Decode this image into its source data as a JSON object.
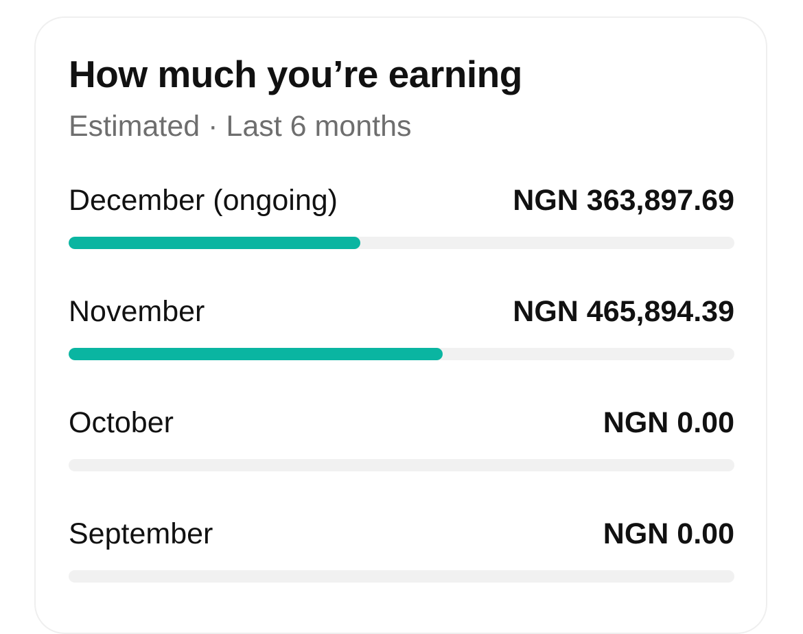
{
  "card": {
    "title": "How much you’re earning",
    "subtitle": "Estimated · Last 6 months"
  },
  "accent_color": "#0ab5a1",
  "months": [
    {
      "label": "December (ongoing)",
      "amount": "NGN 363,897.69",
      "progress": 0.438
    },
    {
      "label": "November",
      "amount": "NGN 465,894.39",
      "progress": 0.562
    },
    {
      "label": "October",
      "amount": "NGN 0.00",
      "progress": 0
    },
    {
      "label": "September",
      "amount": "NGN 0.00",
      "progress": 0
    }
  ]
}
